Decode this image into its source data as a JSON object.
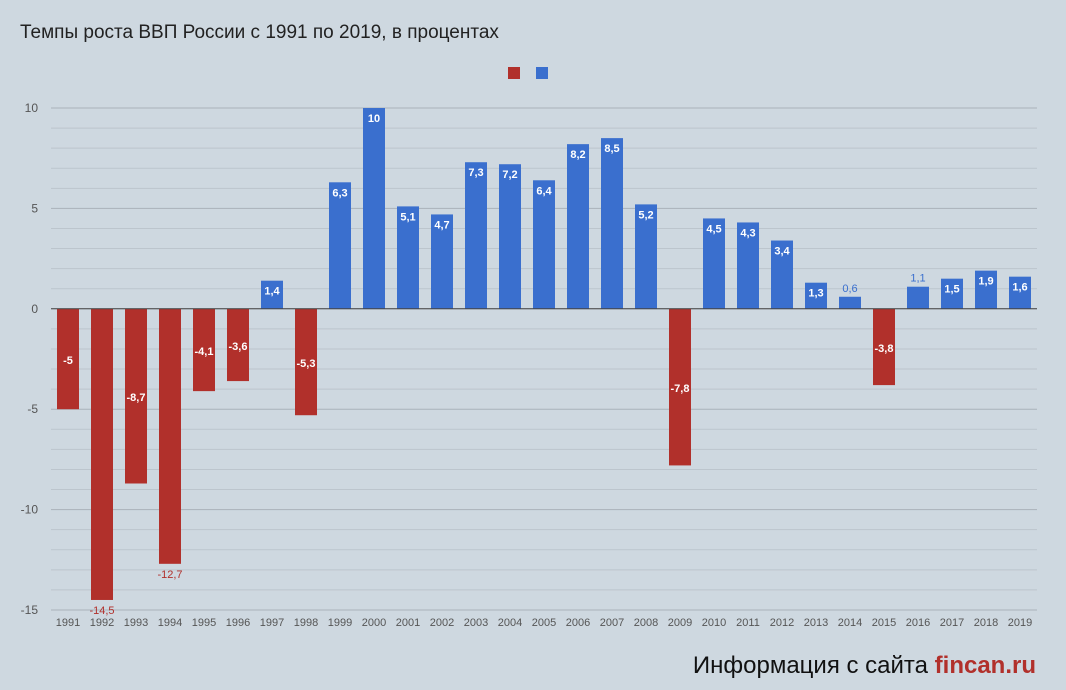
{
  "chart_data": {
    "type": "bar",
    "title": "Темпы роста ВВП России с 1991 по 2019, в процентах",
    "xlabel": "",
    "ylabel": "",
    "ylim": [
      -15,
      10
    ],
    "yticks": [
      10,
      5,
      0,
      -5,
      -10,
      -15
    ],
    "ytick_labels": [
      "10",
      "5",
      "0",
      "-5",
      "-10",
      "-15"
    ],
    "grid": true,
    "categories": [
      "1991",
      "1992",
      "1993",
      "1994",
      "1995",
      "1996",
      "1997",
      "1998",
      "1999",
      "2000",
      "2001",
      "2002",
      "2003",
      "2004",
      "2005",
      "2006",
      "2007",
      "2008",
      "2009",
      "2010",
      "2011",
      "2012",
      "2013",
      "2014",
      "2015",
      "2016",
      "2017",
      "2018",
      "2019"
    ],
    "values": [
      -5,
      -14.5,
      -8.7,
      -12.7,
      -4.1,
      -3.6,
      1.4,
      -5.3,
      6.3,
      10,
      5.1,
      4.7,
      7.3,
      7.2,
      6.4,
      8.2,
      8.5,
      5.2,
      -7.8,
      4.5,
      4.3,
      3.4,
      1.3,
      0.6,
      -3.8,
      1.1,
      1.5,
      1.9,
      1.6
    ],
    "value_labels": [
      "-5",
      "-14,5",
      "-8,7",
      "-12,7",
      "-4,1",
      "-3,6",
      "1,4",
      "-5,3",
      "6,3",
      "10",
      "5,1",
      "4,7",
      "7,3",
      "7,2",
      "6,4",
      "8,2",
      "8,5",
      "5,2",
      "-7,8",
      "4,5",
      "4,3",
      "3,4",
      "1,3",
      "0,6",
      "-3,8",
      "1,1",
      "1,5",
      "1,9",
      "1,6"
    ],
    "colors": {
      "negative": "#b1302b",
      "positive": "#3a6fce"
    }
  },
  "legend": {
    "negative_color": "#b1302b",
    "positive_color": "#3a6fce"
  },
  "footer": {
    "prefix": "Информация с сайта ",
    "site": "fincan.ru",
    "site_color": "#b1302b"
  }
}
